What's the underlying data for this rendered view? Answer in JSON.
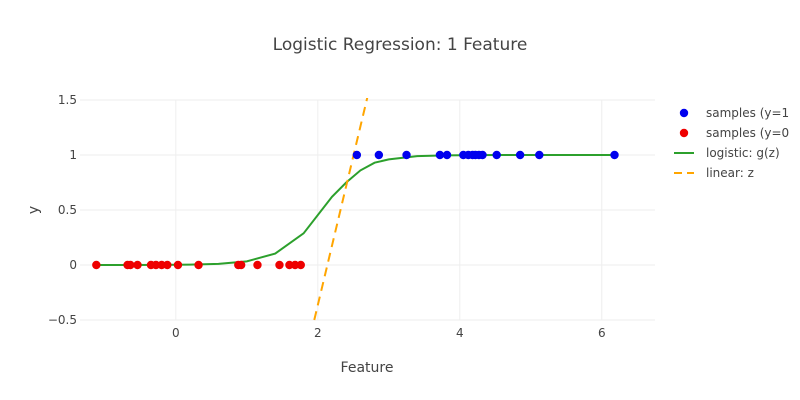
{
  "chart_data": {
    "type": "scatter",
    "title": "Logistic Regression: 1 Feature",
    "xlabel": "Feature",
    "ylabel": "y",
    "xlim": [
      -1.35,
      6.75
    ],
    "ylim": [
      -0.5,
      1.5
    ],
    "x_ticks": [
      {
        "value": 0,
        "label": "0"
      },
      {
        "value": 2,
        "label": "2"
      },
      {
        "value": 4,
        "label": "4"
      },
      {
        "value": 6,
        "label": "6"
      }
    ],
    "y_ticks": [
      {
        "value": -0.5,
        "label": "−0.5"
      },
      {
        "value": 0,
        "label": "0"
      },
      {
        "value": 0.5,
        "label": "0.5"
      },
      {
        "value": 1,
        "label": "1"
      },
      {
        "value": 1.5,
        "label": "1.5"
      }
    ],
    "grid": true,
    "legend_position": "right",
    "series": [
      {
        "name": "samples (y=1",
        "type": "scatter",
        "color": "#0000ee",
        "x": [
          2.55,
          2.86,
          3.25,
          3.72,
          3.82,
          4.05,
          4.12,
          4.18,
          4.22,
          4.27,
          4.32,
          4.52,
          4.85,
          5.12,
          6.18
        ],
        "y": [
          1,
          1,
          1,
          1,
          1,
          1,
          1,
          1,
          1,
          1,
          1,
          1,
          1,
          1,
          1
        ]
      },
      {
        "name": "samples (y=0",
        "type": "scatter",
        "color": "#ee0000",
        "x": [
          -1.12,
          -0.68,
          -0.64,
          -0.54,
          -0.35,
          -0.28,
          -0.2,
          -0.12,
          0.03,
          0.32,
          0.88,
          0.92,
          1.15,
          1.46,
          1.6,
          1.68,
          1.76
        ],
        "y": [
          0,
          0,
          0,
          0,
          0,
          0,
          0,
          0,
          0,
          0,
          0,
          0,
          0,
          0,
          0,
          0,
          0
        ]
      },
      {
        "name": "logistic: g(z)",
        "type": "line",
        "color": "#2ca02c",
        "dash": "solid",
        "x": [
          -1.12,
          -0.6,
          -0.2,
          0.2,
          0.6,
          1.0,
          1.4,
          1.8,
          2.2,
          2.4,
          2.6,
          2.8,
          3.0,
          3.4,
          3.8,
          4.2,
          4.6,
          5.2,
          6.18
        ],
        "y": [
          0.0,
          0.0,
          0.001,
          0.003,
          0.01,
          0.033,
          0.104,
          0.288,
          0.62,
          0.75,
          0.86,
          0.93,
          0.96,
          0.99,
          0.997,
          0.999,
          1.0,
          1.0,
          1.0
        ]
      },
      {
        "name": "linear: z",
        "type": "line",
        "color": "#ffa500",
        "dash": "dash",
        "x": [
          1.95,
          2.7
        ],
        "y": [
          -0.5,
          1.53
        ]
      }
    ]
  }
}
